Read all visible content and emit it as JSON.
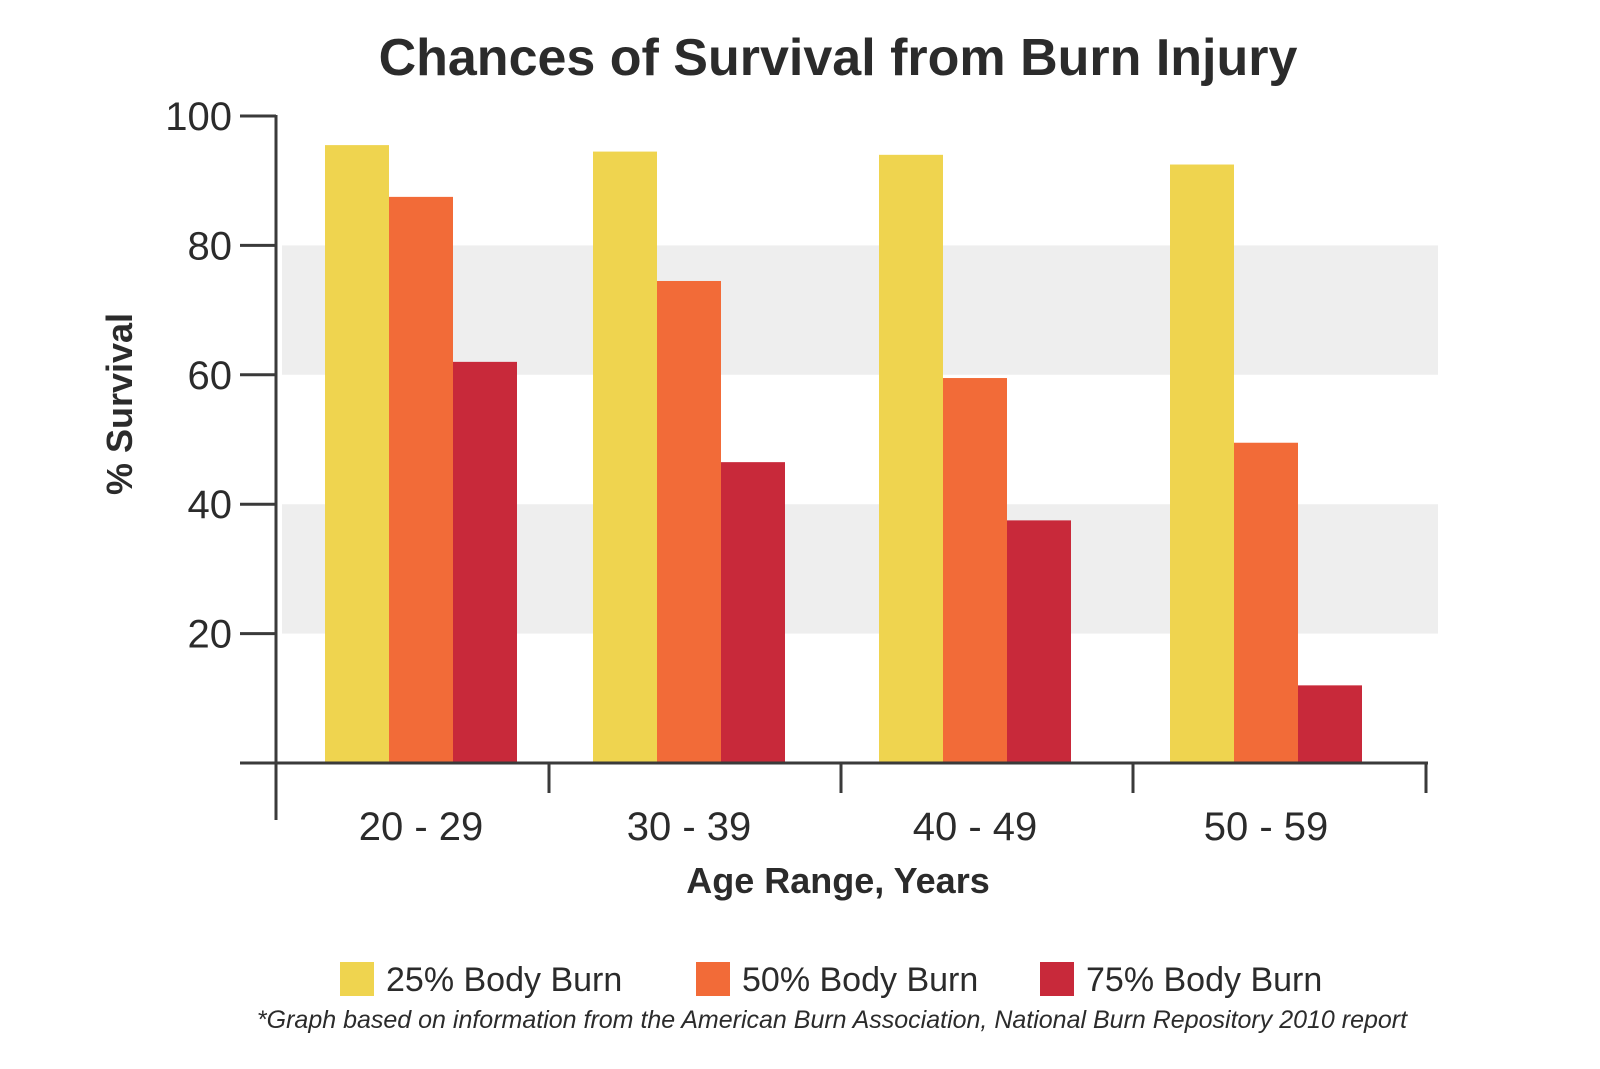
{
  "chart_data": {
    "type": "bar",
    "title": "Chances of Survival from Burn Injury",
    "xlabel": "Age Range, Years",
    "ylabel": "% Survival",
    "categories": [
      "20 - 29",
      "30 - 39",
      "40 - 49",
      "50 - 59"
    ],
    "series": [
      {
        "name": "25% Body Burn",
        "color": "#efd44f",
        "values": [
          95.5,
          94.5,
          94,
          92.5
        ]
      },
      {
        "name": "50% Body Burn",
        "color": "#f26b38",
        "values": [
          87.5,
          74.5,
          59.5,
          49.5
        ]
      },
      {
        "name": "75% Body Burn",
        "color": "#c8293a",
        "values": [
          62,
          46.5,
          37.5,
          12
        ]
      }
    ],
    "ylim": [
      0,
      100
    ],
    "yticks": [
      20,
      40,
      60,
      80,
      100
    ],
    "grid_bands": [
      [
        20,
        40
      ],
      [
        60,
        80
      ]
    ],
    "grid_band_color": "#eeeeee",
    "legend_position": "bottom",
    "footnote": "*Graph based on information from the American Burn Association, National Burn Repository 2010 report"
  }
}
